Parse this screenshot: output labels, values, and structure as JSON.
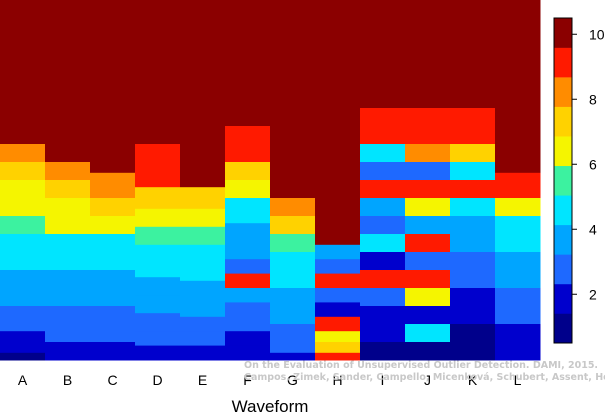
{
  "chart_data": {
    "type": "heatmap",
    "xlabel": "Waveform",
    "categories": [
      "A",
      "B",
      "C",
      "D",
      "E",
      "F",
      "G",
      "H",
      "I",
      "J",
      "K",
      "L"
    ],
    "colorbar": {
      "ticks": [
        2,
        4,
        6,
        8,
        10
      ],
      "range": [
        0.5,
        10.5
      ],
      "levels": [
        1,
        2,
        3,
        4,
        5,
        6,
        7,
        8,
        9,
        10
      ],
      "colors": [
        "#00008B",
        "#0000CD",
        "#1E69FF",
        "#00A5FF",
        "#00E5FF",
        "#3CF2A0",
        "#F5F500",
        "#FFD200",
        "#FF8C00",
        "#FF1A00",
        "#8B0000"
      ]
    },
    "background_value": 10.5,
    "columns": [
      {
        "label": "A",
        "bands": [
          [
            0,
            10.5
          ],
          [
            0.4,
            8
          ],
          [
            0.45,
            7
          ],
          [
            0.5,
            6.5
          ],
          [
            0.55,
            6
          ],
          [
            0.6,
            5.5
          ],
          [
            0.65,
            5
          ],
          [
            0.7,
            4.5
          ],
          [
            0.75,
            4
          ],
          [
            0.8,
            3.5
          ],
          [
            0.85,
            3
          ],
          [
            0.88,
            2.5
          ],
          [
            0.92,
            2
          ],
          [
            0.95,
            1.5
          ],
          [
            0.98,
            1
          ]
        ]
      },
      {
        "label": "B",
        "bands": [
          [
            0,
            10.5
          ],
          [
            0.45,
            8
          ],
          [
            0.5,
            7
          ],
          [
            0.55,
            6.5
          ],
          [
            0.6,
            6
          ],
          [
            0.65,
            5
          ],
          [
            0.7,
            4.5
          ],
          [
            0.75,
            4
          ],
          [
            0.8,
            3.5
          ],
          [
            0.85,
            3
          ],
          [
            0.9,
            2.5
          ],
          [
            0.95,
            2
          ],
          [
            0.98,
            1.5
          ]
        ]
      },
      {
        "label": "C",
        "bands": [
          [
            0,
            10.5
          ],
          [
            0.48,
            8.5
          ],
          [
            0.55,
            7
          ],
          [
            0.6,
            6
          ],
          [
            0.65,
            5
          ],
          [
            0.7,
            4.5
          ],
          [
            0.75,
            4
          ],
          [
            0.8,
            3.5
          ],
          [
            0.85,
            3
          ],
          [
            0.9,
            2.5
          ],
          [
            0.95,
            2
          ],
          [
            0.98,
            1.5
          ]
        ]
      },
      {
        "label": "D",
        "bands": [
          [
            0,
            10.5
          ],
          [
            0.4,
            9
          ],
          [
            0.52,
            7.5
          ],
          [
            0.58,
            6.5
          ],
          [
            0.63,
            5.5
          ],
          [
            0.68,
            5
          ],
          [
            0.72,
            4.5
          ],
          [
            0.77,
            4
          ],
          [
            0.82,
            3.5
          ],
          [
            0.87,
            3
          ],
          [
            0.92,
            2.5
          ],
          [
            0.96,
            2
          ]
        ]
      },
      {
        "label": "E",
        "bands": [
          [
            0,
            10.5
          ],
          [
            0.52,
            7.5
          ],
          [
            0.58,
            6.5
          ],
          [
            0.63,
            5.5
          ],
          [
            0.68,
            5
          ],
          [
            0.73,
            4.5
          ],
          [
            0.78,
            4
          ],
          [
            0.83,
            3.5
          ],
          [
            0.88,
            3
          ],
          [
            0.92,
            2.5
          ],
          [
            0.96,
            2
          ]
        ]
      },
      {
        "label": "F",
        "bands": [
          [
            0,
            10.5
          ],
          [
            0.35,
            9
          ],
          [
            0.45,
            7
          ],
          [
            0.5,
            6
          ],
          [
            0.55,
            5
          ],
          [
            0.62,
            4
          ],
          [
            0.68,
            3.5
          ],
          [
            0.72,
            3
          ],
          [
            0.76,
            9.5
          ],
          [
            0.8,
            4
          ],
          [
            0.84,
            3
          ],
          [
            0.88,
            2.5
          ],
          [
            0.92,
            2
          ],
          [
            0.96,
            1.5
          ]
        ]
      },
      {
        "label": "G",
        "bands": [
          [
            0,
            10.5
          ],
          [
            0.55,
            8.5
          ],
          [
            0.6,
            7
          ],
          [
            0.65,
            5.5
          ],
          [
            0.7,
            5
          ],
          [
            0.75,
            4.5
          ],
          [
            0.8,
            4
          ],
          [
            0.85,
            3.5
          ],
          [
            0.9,
            3
          ],
          [
            0.95,
            2.5
          ],
          [
            0.98,
            2
          ]
        ]
      },
      {
        "label": "H",
        "bands": [
          [
            0,
            10.5
          ],
          [
            0.68,
            4
          ],
          [
            0.72,
            3
          ],
          [
            0.76,
            9
          ],
          [
            0.8,
            3
          ],
          [
            0.84,
            2
          ],
          [
            0.88,
            9
          ],
          [
            0.92,
            6
          ],
          [
            0.95,
            7
          ],
          [
            0.98,
            9
          ]
        ]
      },
      {
        "label": "I",
        "bands": [
          [
            0,
            10.5
          ],
          [
            0.3,
            9
          ],
          [
            0.4,
            5
          ],
          [
            0.45,
            3
          ],
          [
            0.5,
            9
          ],
          [
            0.55,
            4
          ],
          [
            0.6,
            3
          ],
          [
            0.65,
            5
          ],
          [
            0.7,
            2
          ],
          [
            0.75,
            9
          ],
          [
            0.8,
            3
          ],
          [
            0.85,
            2
          ],
          [
            0.9,
            1.5
          ],
          [
            0.95,
            1
          ]
        ]
      },
      {
        "label": "J",
        "bands": [
          [
            0,
            10.5
          ],
          [
            0.3,
            9
          ],
          [
            0.4,
            8
          ],
          [
            0.45,
            3
          ],
          [
            0.5,
            9.5
          ],
          [
            0.55,
            6
          ],
          [
            0.6,
            3.5
          ],
          [
            0.65,
            9.5
          ],
          [
            0.7,
            3
          ],
          [
            0.75,
            9
          ],
          [
            0.8,
            6
          ],
          [
            0.85,
            2
          ],
          [
            0.9,
            5
          ],
          [
            0.95,
            1
          ]
        ]
      },
      {
        "label": "K",
        "bands": [
          [
            0,
            10.5
          ],
          [
            0.3,
            9
          ],
          [
            0.4,
            7
          ],
          [
            0.45,
            4.5
          ],
          [
            0.5,
            9
          ],
          [
            0.55,
            5
          ],
          [
            0.6,
            3.5
          ],
          [
            0.65,
            4
          ],
          [
            0.7,
            3
          ],
          [
            0.75,
            2.5
          ],
          [
            0.8,
            2
          ],
          [
            0.85,
            1.5
          ],
          [
            0.9,
            1
          ]
        ]
      },
      {
        "label": "L",
        "bands": [
          [
            0,
            10.5
          ],
          [
            0.48,
            9
          ],
          [
            0.55,
            6.5
          ],
          [
            0.6,
            5
          ],
          [
            0.65,
            4.5
          ],
          [
            0.7,
            4
          ],
          [
            0.75,
            3.5
          ],
          [
            0.8,
            3
          ],
          [
            0.85,
            2.5
          ],
          [
            0.9,
            2
          ],
          [
            0.95,
            1.5
          ]
        ]
      }
    ]
  },
  "watermark": {
    "line1": "On the Evaluation of Unsupervised Outlier Detection. DAMI, 2015.",
    "line2": "Campos, Zimek, Sander, Campello, Micenková, Schubert, Assent, Houle"
  }
}
